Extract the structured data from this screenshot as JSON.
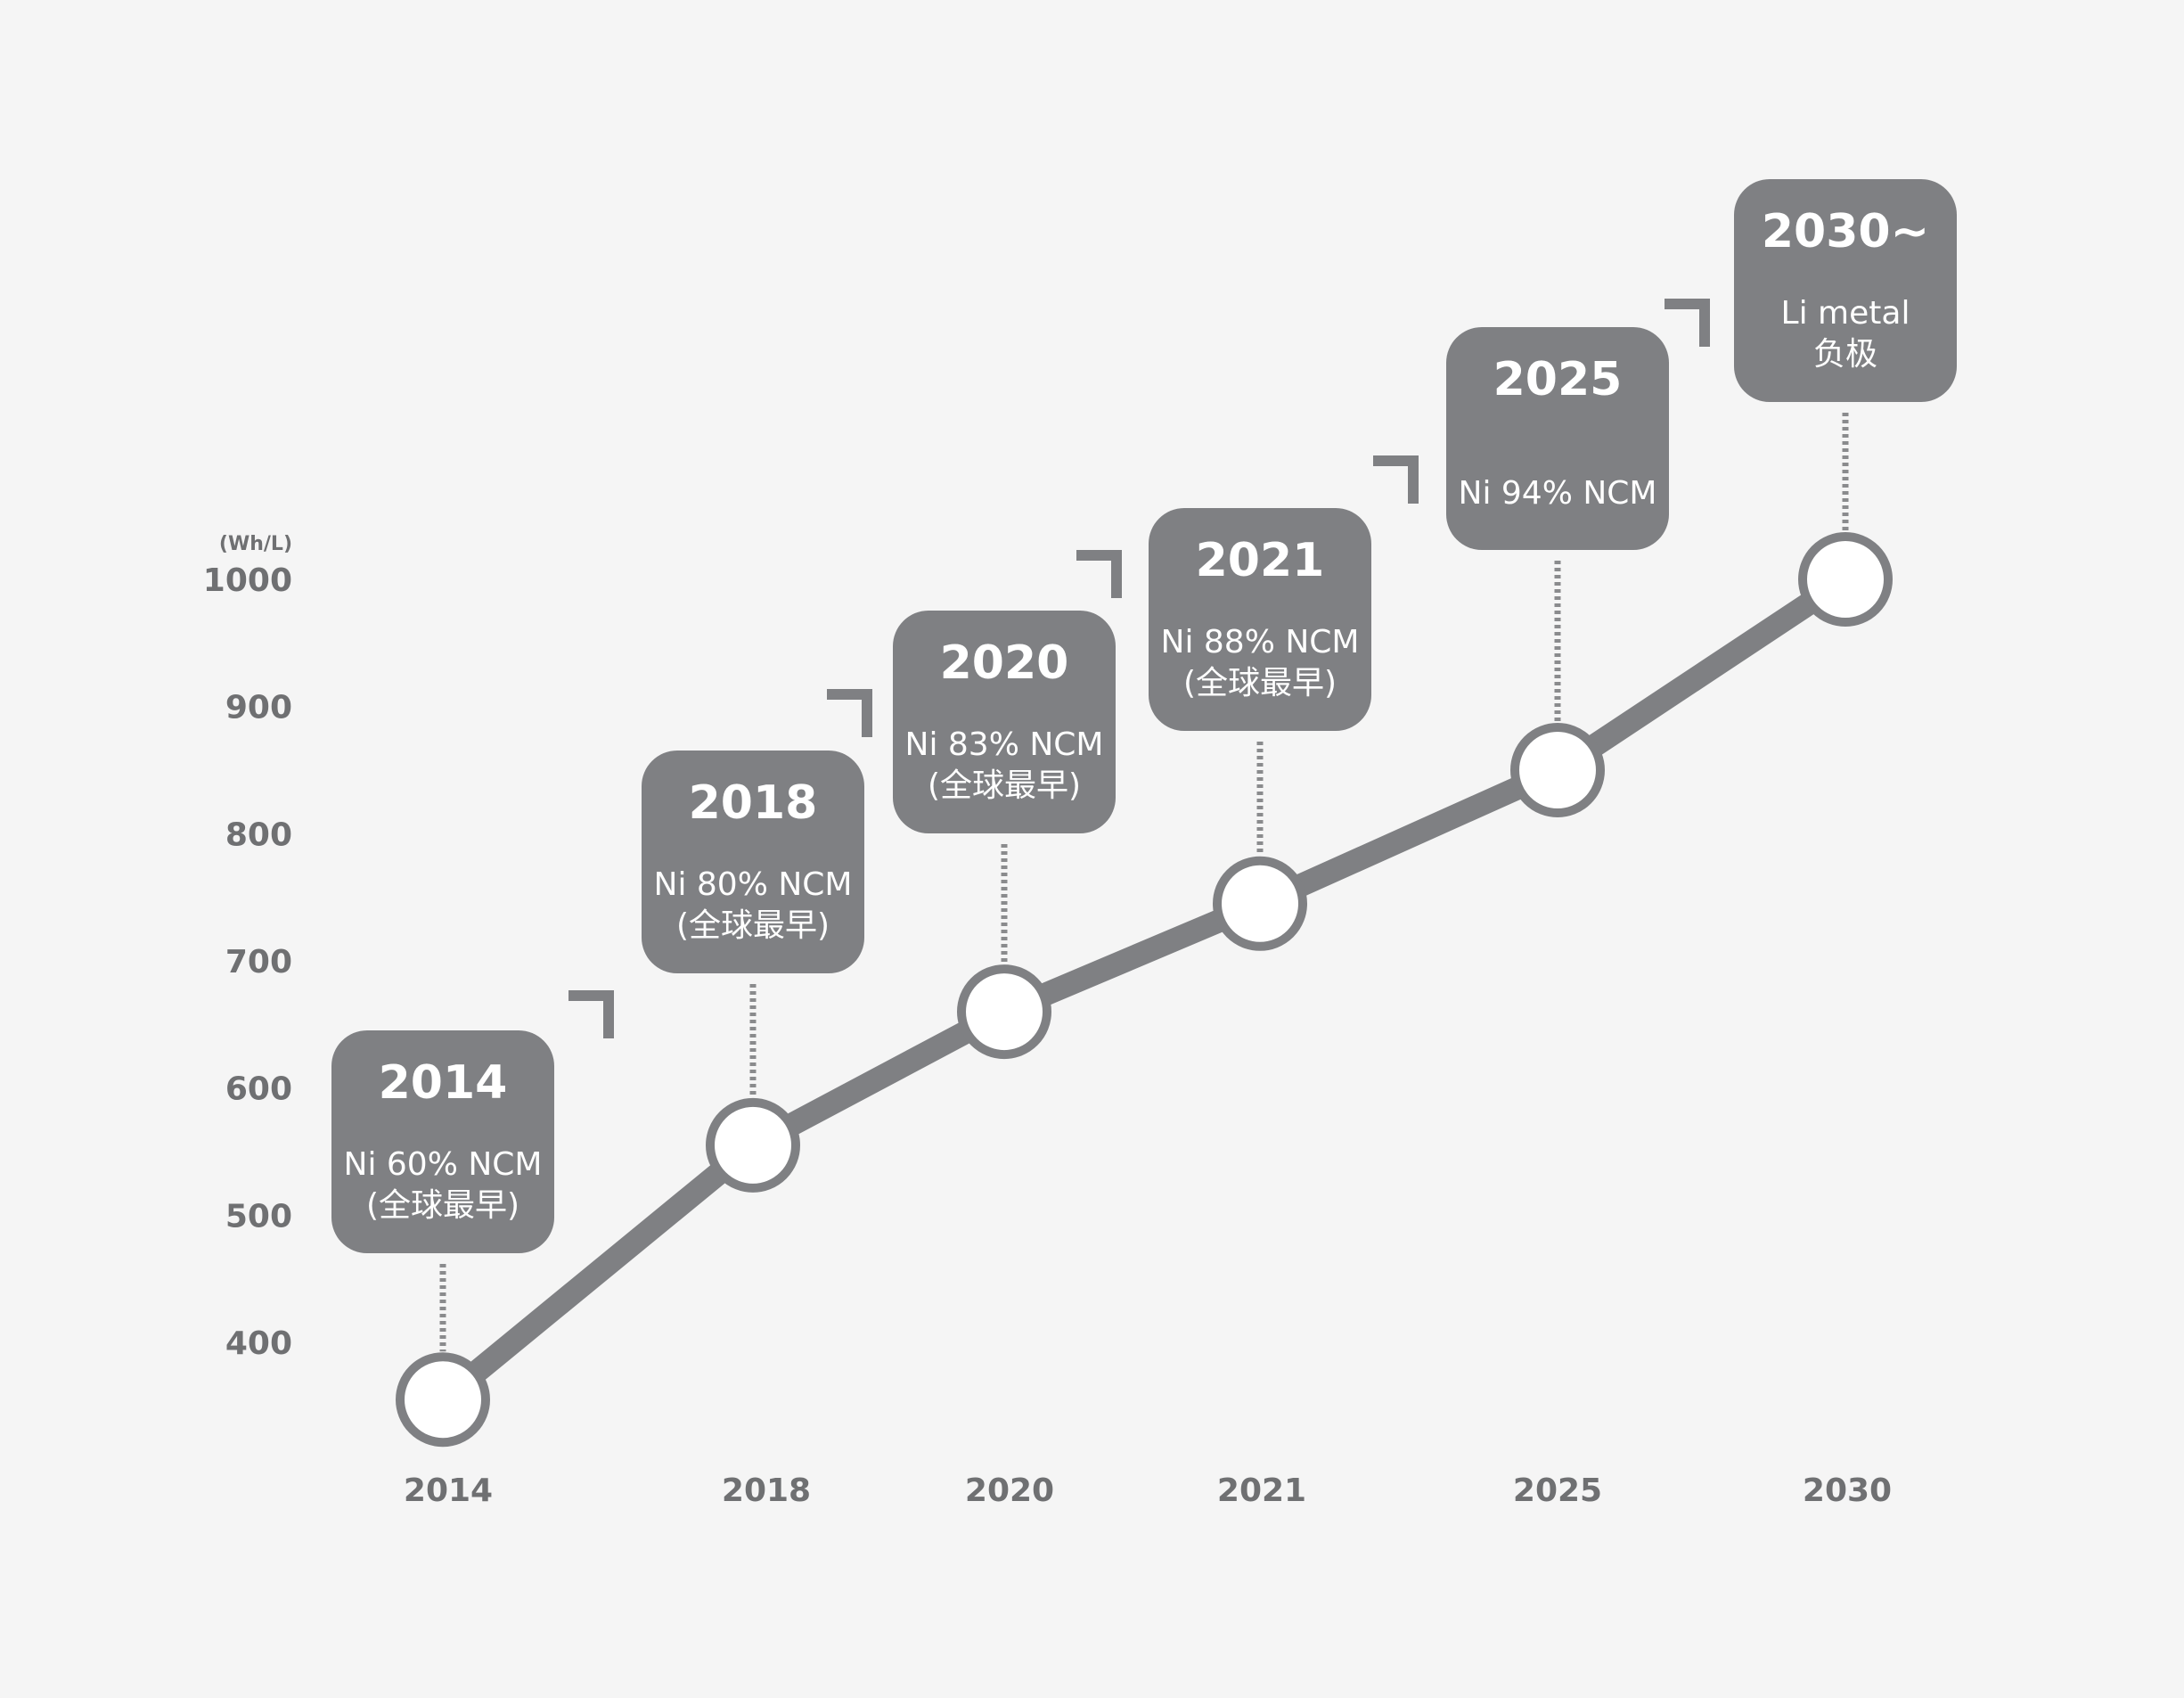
{
  "chart_data": {
    "type": "line",
    "unit_label": "(Wh/L)",
    "y_ticks": [
      1000,
      900,
      800,
      700,
      600,
      500,
      400
    ],
    "ylim": [
      360,
      1010
    ],
    "categories": [
      "2014",
      "2018",
      "2020",
      "2021",
      "2025",
      "2030"
    ],
    "values": [
      355,
      555,
      660,
      745,
      850,
      1000
    ],
    "milestones": [
      {
        "year": "2014",
        "lines": [
          "Ni 60% NCM",
          "(全球最早)"
        ]
      },
      {
        "year": "2018",
        "lines": [
          "Ni 80% NCM",
          "(全球最早)"
        ]
      },
      {
        "year": "2020",
        "lines": [
          "Ni 83% NCM",
          "(全球最早)"
        ]
      },
      {
        "year": "2021",
        "lines": [
          "Ni 88% NCM",
          "(全球最早)"
        ]
      },
      {
        "year": "2025",
        "lines": [
          "Ni 94% NCM"
        ]
      },
      {
        "year": "2030~",
        "lines": [
          "Li metal",
          "负极"
        ]
      }
    ],
    "colors": {
      "line": "#7f8083",
      "box": "#7f8083",
      "text_axis": "#6f7072",
      "background": "#f5f5f5",
      "marker_fill": "#ffffff"
    }
  }
}
